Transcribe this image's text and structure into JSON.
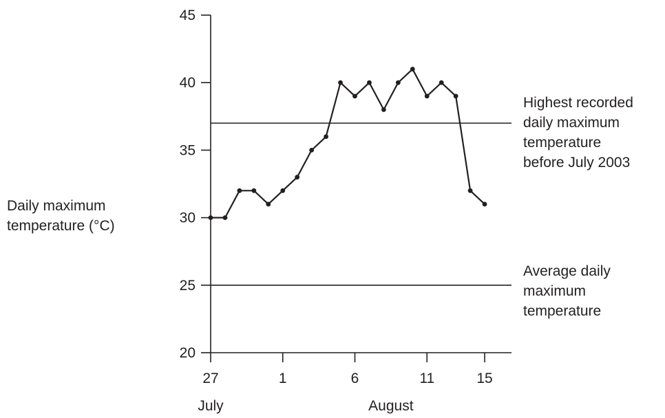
{
  "chart_data": {
    "type": "line",
    "ylabel_lines": [
      "Daily maximum",
      "temperature (°C)"
    ],
    "ylim": [
      20,
      45
    ],
    "y_ticks": [
      20,
      25,
      30,
      35,
      40,
      45
    ],
    "x_ticks": [
      {
        "label": "27",
        "day": 0
      },
      {
        "label": "1",
        "day": 5
      },
      {
        "label": "6",
        "day": 10
      },
      {
        "label": "11",
        "day": 15
      },
      {
        "label": "15",
        "day": 19
      }
    ],
    "x_month_labels": [
      {
        "label": "July",
        "day": 0
      },
      {
        "label": "August",
        "day": 12.5
      }
    ],
    "xlim": [
      0,
      20.5
    ],
    "grid": false,
    "series": [
      {
        "x": [
          0,
          1,
          2,
          3,
          4,
          5,
          6,
          7,
          8,
          9,
          10,
          11,
          12,
          13,
          14,
          15,
          16,
          17,
          18,
          19,
          20
        ],
        "values": [
          30,
          30,
          32,
          32,
          31,
          32,
          33,
          35,
          36,
          40,
          39,
          40,
          38,
          40,
          41,
          39,
          40,
          39,
          32,
          31,
          null
        ],
        "x_dates": [
          "27 July",
          "28 July",
          "29 July",
          "30 July",
          "31 July",
          "1 August",
          "2 August",
          "3 August",
          "4 August",
          "5 August",
          "6 August",
          "7 August",
          "8 August",
          "9 August",
          "10 August",
          "11 August",
          "12 August",
          "13 August",
          "14 August",
          "15 August"
        ]
      }
    ],
    "reference_lines": [
      {
        "value": 37,
        "label_lines": [
          "Highest recorded",
          "daily maximum",
          "temperature",
          "before July 2003"
        ]
      },
      {
        "value": 25,
        "label_lines": [
          "Average daily",
          "maximum",
          "temperature"
        ]
      }
    ],
    "colors": {
      "line": "#231f20",
      "axis": "#231f20"
    }
  }
}
